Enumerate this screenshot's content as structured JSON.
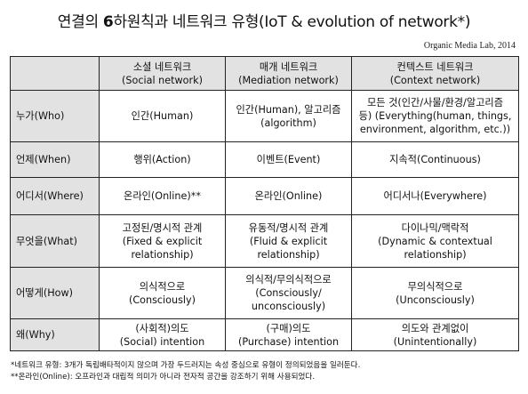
{
  "title": {
    "before_num": "연결의 ",
    "num": "6",
    "after_num": "하원칙과 네트워크 유형(IoT & evolution of network*)"
  },
  "credit": "Organic Media Lab, 2014",
  "table": {
    "headers": [
      {
        "id": "blank",
        "lines": [
          ""
        ]
      },
      {
        "id": "social",
        "lines": [
          "소셜 네트워크",
          "(Social network)"
        ]
      },
      {
        "id": "mediation",
        "lines": [
          "매개 네트워크",
          "(Mediation network)"
        ]
      },
      {
        "id": "context",
        "lines": [
          "컨텍스트 네트워크",
          "(Context network)"
        ]
      }
    ],
    "rows": [
      {
        "id": "who",
        "label": "누가(Who)",
        "cells": [
          [
            "인간(Human)"
          ],
          [
            "인간(Human), 알고리즘",
            "(algorithm)"
          ],
          [
            "모든 것(인간/사물/환경/알고리즘",
            "등) (Everything(human, things,",
            "environment, algorithm, etc.))"
          ]
        ]
      },
      {
        "id": "when",
        "label": "언제(When)",
        "cells": [
          [
            "행위(Action)"
          ],
          [
            "이벤트(Event)"
          ],
          [
            "지속적(Continuous)"
          ]
        ]
      },
      {
        "id": "where",
        "label": "어디서(Where)",
        "cells": [
          [
            "온라인(Online)**"
          ],
          [
            "온라인(Online)"
          ],
          [
            "어디서나(Everywhere)"
          ]
        ]
      },
      {
        "id": "what",
        "label": "무엇을(What)",
        "cells": [
          [
            "고정된/명시적 관계",
            "(Fixed & explicit",
            "relationship)"
          ],
          [
            "유동적/명시적 관계",
            "(Fluid & explicit",
            "relationship)"
          ],
          [
            "다이나믹/맥락적",
            "(Dynamic & contextual",
            "relationship)"
          ]
        ]
      },
      {
        "id": "how",
        "label": "어떻게(How)",
        "cells": [
          [
            "의식적으로",
            "(Consciously)"
          ],
          [
            "의식적/무의식적으로",
            "(Consciously/",
            "unconsciously)"
          ],
          [
            "무의식적으로",
            "(Unconsciously)"
          ]
        ]
      },
      {
        "id": "why",
        "label": "왜(Why)",
        "cells": [
          [
            "(사회적)의도",
            "(Social) intention"
          ],
          [
            "(구매)의도",
            "(Purchase) intention"
          ],
          [
            "의도와 관계없이",
            "(Unintentionally)"
          ]
        ]
      }
    ]
  },
  "notes": [
    "*네트워크 유형: 3개가 독립배타적이지 않으며 가장 두드러지는 속성 중심으로 유형이 정의되었음을 일러둔다.",
    "**온라인(Online): 오프라인과 대립적 의미가 아니라 전자적 공간을 강조하기 위해 사용되었다."
  ],
  "colors": {
    "header_bg": "#e2e2e2",
    "border": "#222222",
    "text": "#111111"
  }
}
